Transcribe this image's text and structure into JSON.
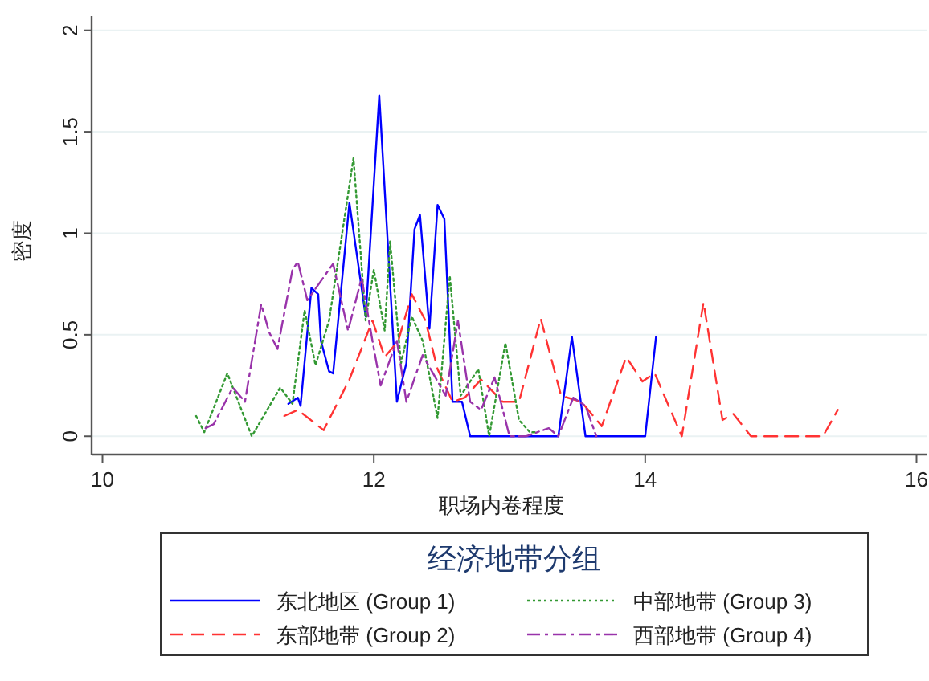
{
  "chart_data": {
    "type": "line",
    "xlabel": "职场内卷程度",
    "ylabel": "密度",
    "legend_title": "经济地带分组",
    "legend": "bottom",
    "grid": "y",
    "marker": "none",
    "xlim": [
      9.92,
      16.08
    ],
    "ylim": [
      -0.09,
      2.07
    ],
    "xticks": [
      10,
      12,
      14,
      16
    ],
    "yticks": [
      0,
      0.5,
      1,
      1.5,
      2
    ],
    "series": [
      {
        "name": "东北地区 (Group 1)",
        "color": "#0000ff",
        "line_style": "solid",
        "x": [
          11.37,
          11.44,
          11.46,
          11.54,
          11.59,
          11.61,
          11.67,
          11.7,
          11.82,
          11.94,
          12.04,
          12.17,
          12.24,
          12.3,
          12.34,
          12.41,
          12.47,
          12.52,
          12.58,
          12.65,
          12.71,
          13.36,
          13.46,
          13.56,
          14.0,
          14.08
        ],
        "values": [
          0.16,
          0.19,
          0.15,
          0.73,
          0.7,
          0.47,
          0.32,
          0.31,
          1.15,
          0.59,
          1.68,
          0.17,
          0.36,
          1.02,
          1.09,
          0.53,
          1.14,
          1.07,
          0.17,
          0.17,
          0,
          0,
          0.49,
          0,
          0,
          0.49
        ]
      },
      {
        "name": "东部地带 (Group 2)",
        "color": "#ff3333",
        "line_style": "dashed",
        "x": [
          11.34,
          11.44,
          11.63,
          11.82,
          11.99,
          12.08,
          12.18,
          12.28,
          12.38,
          12.47,
          12.58,
          12.67,
          12.79,
          12.95,
          13.07,
          13.23,
          13.38,
          13.53,
          13.68,
          13.86,
          13.98,
          14.07,
          14.27,
          14.43,
          14.57,
          14.65,
          14.78,
          15.31,
          15.42
        ],
        "values": [
          0.1,
          0.13,
          0.03,
          0.28,
          0.57,
          0.39,
          0.47,
          0.7,
          0.57,
          0.33,
          0.17,
          0.19,
          0.28,
          0.17,
          0.17,
          0.58,
          0.2,
          0.17,
          0.05,
          0.39,
          0.27,
          0.31,
          0,
          0.66,
          0.08,
          0.11,
          0,
          0,
          0.13
        ]
      },
      {
        "name": "中部地带 (Group 3)",
        "color": "#339933",
        "line_style": "dotted",
        "x": [
          10.69,
          10.75,
          10.92,
          11.1,
          11.31,
          11.4,
          11.49,
          11.57,
          11.67,
          11.85,
          11.94,
          12.0,
          12.08,
          12.12,
          12.2,
          12.28,
          12.36,
          12.47,
          12.56,
          12.64,
          12.77,
          12.85,
          12.97,
          13.07,
          13.15,
          13.2
        ],
        "values": [
          0.1,
          0.02,
          0.31,
          0,
          0.24,
          0.16,
          0.62,
          0.35,
          0.57,
          1.37,
          0.57,
          0.82,
          0.52,
          0.96,
          0.36,
          0.59,
          0.47,
          0.09,
          0.79,
          0.2,
          0.33,
          0,
          0.46,
          0.08,
          0.02,
          0.02
        ]
      },
      {
        "name": "西部地带 (Group 4)",
        "color": "#9933aa",
        "line_style": "dashdot",
        "x": [
          10.76,
          10.82,
          10.96,
          11.05,
          11.17,
          11.23,
          11.29,
          11.4,
          11.44,
          11.51,
          11.7,
          11.81,
          11.91,
          11.99,
          12.05,
          12.17,
          12.24,
          12.36,
          12.53,
          12.62,
          12.71,
          12.79,
          12.89,
          13.0,
          13.12,
          13.29,
          13.36,
          13.47,
          13.56,
          13.64
        ],
        "values": [
          0.04,
          0.06,
          0.24,
          0.17,
          0.65,
          0.51,
          0.43,
          0.82,
          0.86,
          0.67,
          0.85,
          0.52,
          0.78,
          0.47,
          0.25,
          0.47,
          0.17,
          0.4,
          0.2,
          0.57,
          0.17,
          0.13,
          0.29,
          0,
          0,
          0.04,
          0,
          0.19,
          0.15,
          0
        ]
      }
    ]
  }
}
